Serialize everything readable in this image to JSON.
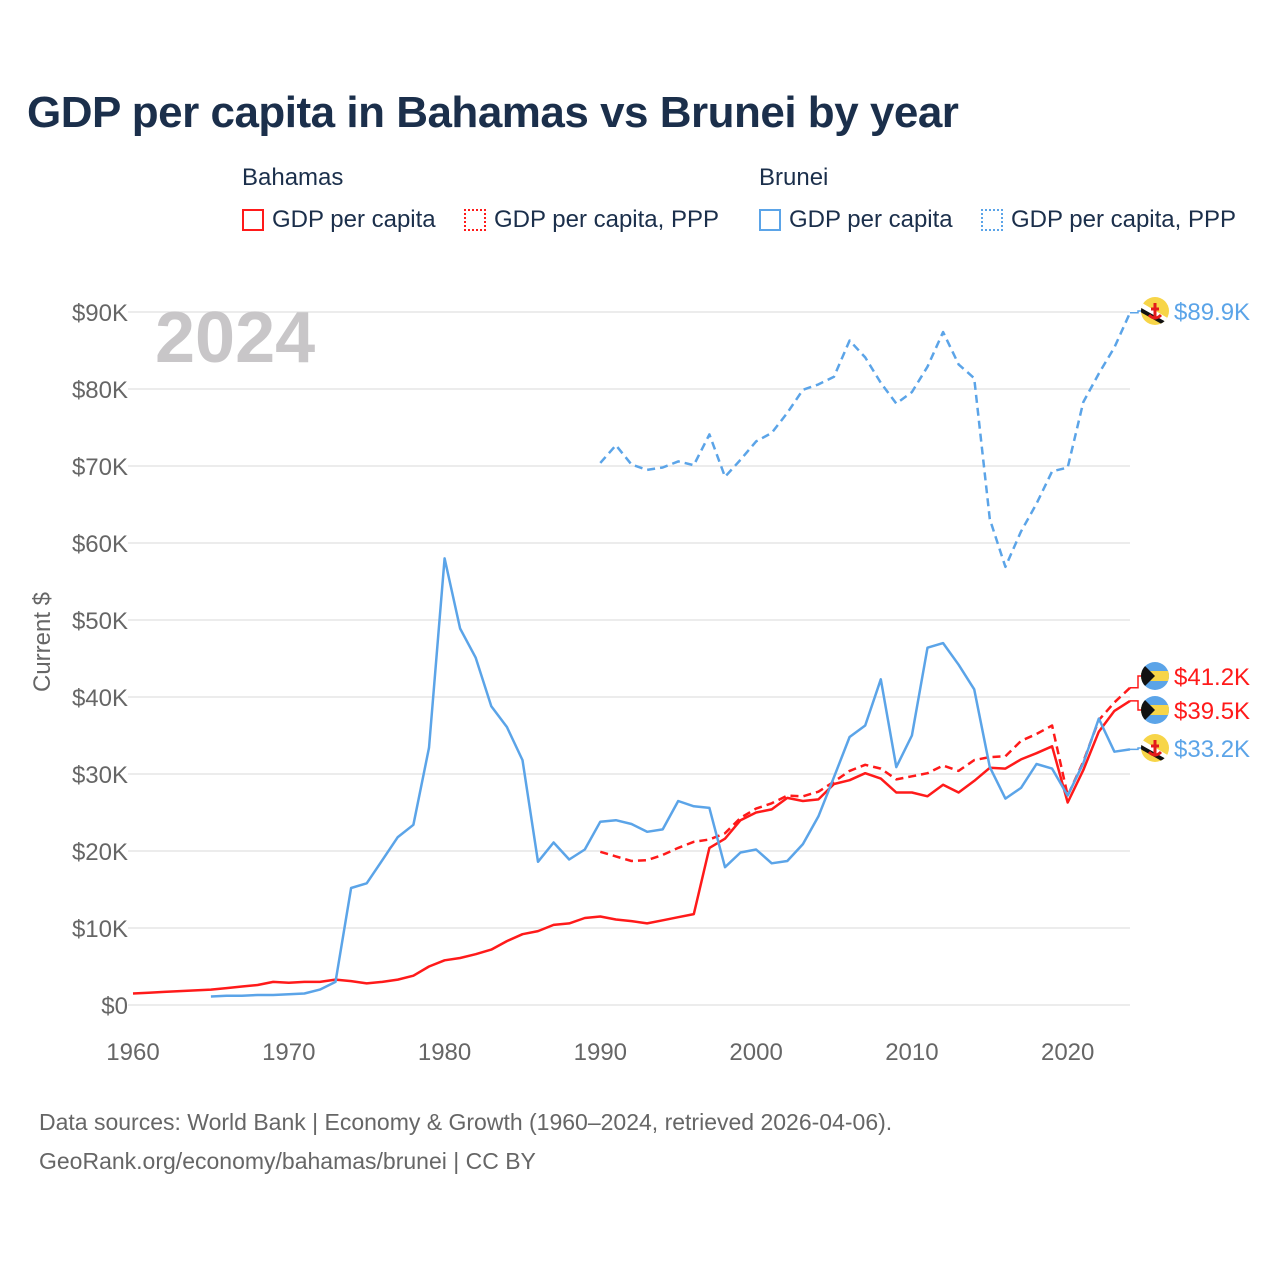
{
  "title": "GDP per capita in Bahamas vs Brunei by year",
  "legend": {
    "groups": [
      {
        "name": "Bahamas",
        "items": [
          "GDP per capita",
          "GDP per capita, PPP"
        ],
        "color": "#ff1a1a"
      },
      {
        "name": "Brunei",
        "items": [
          "GDP per capita",
          "GDP per capita, PPP"
        ],
        "color": "#5ba4e8"
      }
    ]
  },
  "year_label": "2024",
  "footer": {
    "line1": "Data sources: World Bank | Economy & Growth (1960–2024, retrieved 2026-04-06).",
    "line2": "GeoRank.org/economy/bahamas/brunei | CC BY"
  },
  "chart_data": {
    "type": "line",
    "title": "GDP per capita in Bahamas vs Brunei by year",
    "xlabel": "",
    "ylabel": "Current $",
    "xlim": [
      1960,
      2024
    ],
    "ylim": [
      0,
      90000
    ],
    "x_ticks": [
      "1960",
      "1970",
      "1980",
      "1990",
      "2000",
      "2010",
      "2020"
    ],
    "y_ticks": [
      "$0",
      "$10K",
      "$20K",
      "$30K",
      "$40K",
      "$50K",
      "$60K",
      "$70K",
      "$80K",
      "$90K"
    ],
    "grid": true,
    "legend_placement": "top",
    "series": [
      {
        "name": "Bahamas GDP per capita",
        "country": "Bahamas",
        "color": "#ff1a1a",
        "dash": false,
        "start": 1960,
        "end_label": "$39.5K",
        "values_k": [
          1.5,
          1.6,
          1.7,
          1.8,
          1.9,
          2.0,
          2.2,
          2.4,
          2.6,
          3.0,
          2.9,
          3.0,
          3.0,
          3.3,
          3.1,
          2.8,
          3.0,
          3.3,
          3.8,
          5.0,
          5.8,
          6.1,
          6.6,
          7.2,
          8.3,
          9.2,
          9.6,
          10.4,
          10.6,
          11.3,
          11.5,
          11.1,
          10.9,
          10.6,
          11.0,
          11.4,
          11.8,
          20.4,
          21.6,
          24.0,
          25.0,
          25.4,
          26.9,
          26.5,
          26.7,
          28.7,
          29.2,
          30.1,
          29.4,
          27.6,
          27.6,
          27.1,
          28.6,
          27.6,
          29.1,
          30.8,
          30.7,
          31.9,
          32.7,
          33.6,
          26.3,
          30.5,
          35.5,
          38.2,
          39.5
        ]
      },
      {
        "name": "Bahamas GDP per capita, PPP",
        "country": "Bahamas",
        "color": "#ff1a1a",
        "dash": true,
        "start": 1990,
        "end_label": "$41.2K",
        "values_k": [
          19.9,
          19.3,
          18.7,
          18.8,
          19.5,
          20.4,
          21.2,
          21.5,
          22.3,
          24.3,
          25.5,
          26.2,
          27.2,
          27.1,
          27.7,
          29.0,
          30.4,
          31.2,
          30.7,
          29.3,
          29.7,
          30.1,
          31.1,
          30.4,
          31.8,
          32.2,
          32.3,
          34.3,
          35.2,
          36.3,
          27.2,
          31.6,
          37.0,
          39.3,
          41.2
        ]
      },
      {
        "name": "Brunei GDP per capita",
        "country": "Brunei",
        "color": "#5ba4e8",
        "dash": false,
        "start": 1965,
        "end_label": "$33.2K",
        "values_k": [
          1.1,
          1.2,
          1.2,
          1.3,
          1.3,
          1.4,
          1.5,
          2.0,
          3.0,
          15.2,
          15.8,
          18.8,
          21.8,
          23.4,
          33.4,
          58.0,
          48.9,
          45.1,
          38.8,
          36.1,
          31.8,
          18.6,
          21.1,
          18.9,
          20.2,
          23.8,
          24.0,
          23.5,
          22.5,
          22.8,
          26.5,
          25.8,
          25.6,
          17.9,
          19.8,
          20.2,
          18.4,
          18.7,
          20.9,
          24.5,
          29.6,
          34.8,
          36.3,
          42.3,
          30.9,
          35.0,
          46.4,
          47.0,
          44.2,
          41.0,
          30.9,
          26.8,
          28.2,
          31.3,
          30.7,
          27.2,
          31.4,
          37.2,
          32.9,
          33.2
        ]
      },
      {
        "name": "Brunei GDP per capita, PPP",
        "country": "Brunei",
        "color": "#5ba4e8",
        "dash": true,
        "start": 1990,
        "end_label": "$89.9K",
        "values_k": [
          70.4,
          72.7,
          70.2,
          69.5,
          69.8,
          70.6,
          70.1,
          74.1,
          68.6,
          70.8,
          73.2,
          74.3,
          76.9,
          79.9,
          80.6,
          81.6,
          86.3,
          84.1,
          80.8,
          78.1,
          79.6,
          82.9,
          87.4,
          83.2,
          81.4,
          63.1,
          56.9,
          61.5,
          65.1,
          69.3,
          69.8,
          78.3,
          82.0,
          85.4,
          89.9
        ]
      }
    ]
  }
}
